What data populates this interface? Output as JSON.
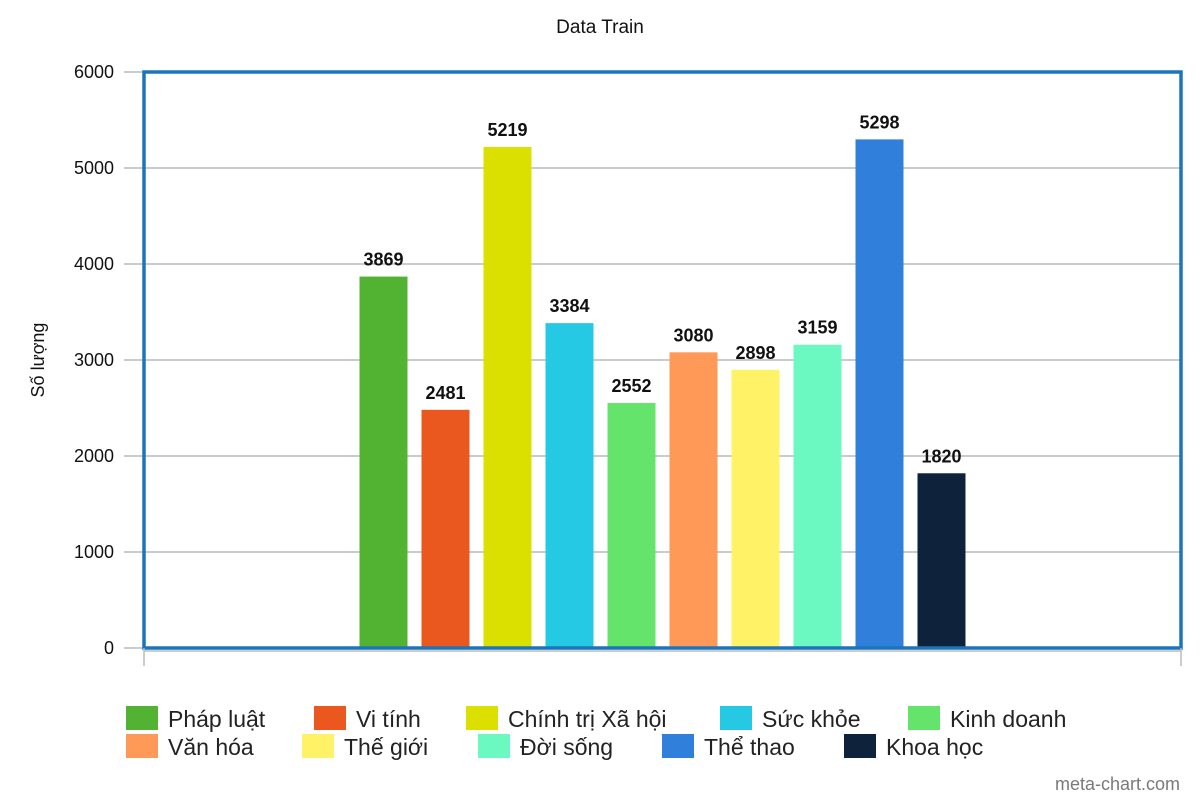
{
  "chart_data": {
    "type": "bar",
    "title": "Data Train",
    "ylabel": "Số lượng",
    "xlabel": "",
    "ylim": [
      0,
      6000
    ],
    "yticks": [
      0,
      1000,
      2000,
      3000,
      4000,
      5000,
      6000
    ],
    "grid": true,
    "legend_position": "bottom",
    "series": [
      {
        "name": "Pháp luật",
        "value": 3869,
        "label": "3869",
        "color": "#52b332"
      },
      {
        "name": "Vi tính",
        "value": 2481,
        "label": "2481",
        "color": "#eb581f"
      },
      {
        "name": "Chính trị Xã hội",
        "value": 5219,
        "label": "5219",
        "color": "#dce000"
      },
      {
        "name": "Sức khỏe",
        "value": 3384,
        "label": "3384",
        "color": "#26c9e3"
      },
      {
        "name": "Kinh doanh",
        "value": 2552,
        "label": "2552",
        "color": "#65e46c"
      },
      {
        "name": "Văn hóa",
        "value": 3080,
        "label": "3080",
        "color": "#ff9957"
      },
      {
        "name": "Thế giới",
        "value": 2898,
        "label": "2898",
        "color": "#fff266"
      },
      {
        "name": "Đời sống",
        "value": 3159,
        "label": "3159",
        "color": "#6cf8c1"
      },
      {
        "name": "Thể thao",
        "value": 5298,
        "label": "5298",
        "color": "#3080db"
      },
      {
        "name": "Khoa học",
        "value": 1820,
        "label": "1820",
        "color": "#0e233b"
      }
    ],
    "colors": {
      "frame": "#1b75bb",
      "grid": "#b7bbbf",
      "axis": "#b9bbbd"
    }
  },
  "watermark": "meta-chart.com"
}
